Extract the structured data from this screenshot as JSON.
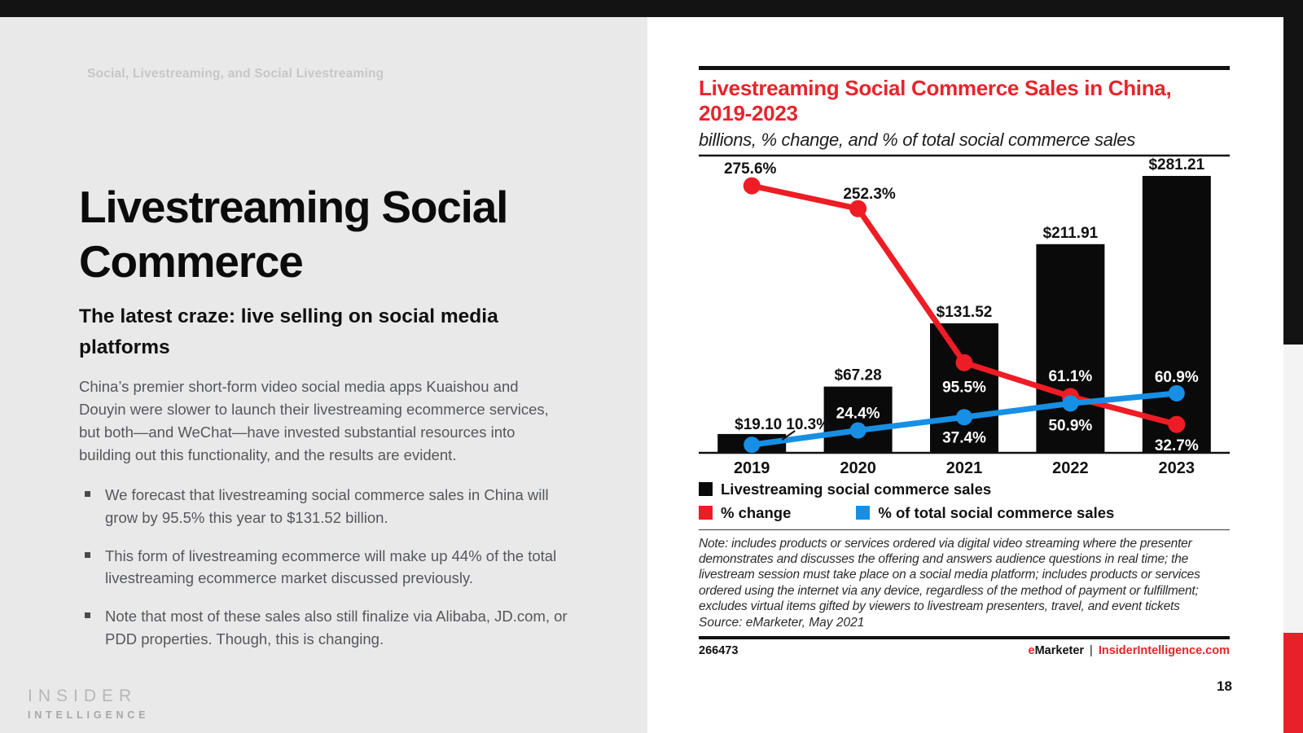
{
  "slide": {
    "eyebrow": "Social, Livestreaming, and Social Livestreaming",
    "title": "Livestreaming Social Commerce",
    "heading": "The latest craze: live selling on social media platforms",
    "paragraph": "China’s premier short-form video social media apps Kuaishou and Douyin were slower to launch their livestreaming ecommerce services, but both—and WeChat—have invested substantial resources into building out this functionality, and the results are evident.",
    "bullets": [
      "We forecast that livestreaming social commerce sales in China will grow by 95.5% this year to $131.52 billion.",
      "This form of livestreaming ecommerce will make up 44% of the total livestreaming ecommerce market discussed previously.",
      "Note that most of these sales also still finalize via Alibaba, JD.com, or PDD properties. Though, this is changing."
    ],
    "page_number": "18",
    "logo": {
      "line1": "INSIDER",
      "line2": "INTELLIGENCE"
    }
  },
  "panel": {
    "title_line1": "Livestreaming Social Commerce Sales in China,",
    "title_line2": "2019-2023",
    "subtitle": "billions, % change, and % of total social commerce sales",
    "note": "Note: includes products or services ordered via digital video streaming where the presenter demonstrates and discusses the offering and answers audience questions in real time; the livestream session must take place on a social media platform; includes products or services ordered using the internet via any device, regardless of the method of payment or fulfillment; excludes virtual items gifted by viewers to livestream presenters, travel, and event tickets",
    "source": "Source: eMarketer, May 2021",
    "chart_id": "266473",
    "brand": {
      "e": "e",
      "marketer": "Marketer",
      "separator": "|",
      "site": "InsiderIntelligence.com"
    }
  },
  "chart_data": {
    "type": "combo",
    "title": "Livestreaming Social Commerce Sales in China, 2019-2023",
    "units_note": "billions, % change, and % of total social commerce sales",
    "categories": [
      "2019",
      "2020",
      "2021",
      "2022",
      "2023"
    ],
    "series": [
      {
        "name": "Livestreaming social commerce sales",
        "type": "bar",
        "color": "#0a0a0a",
        "unit": "USD billions",
        "values": [
          19.1,
          67.28,
          131.52,
          211.91,
          281.21
        ],
        "labels": [
          "$19.10",
          "$67.28",
          "$131.52",
          "$211.91",
          "$281.21"
        ]
      },
      {
        "name": "% change",
        "type": "line",
        "color": "#ee1c25",
        "unit": "%",
        "values": [
          275.6,
          252.3,
          95.5,
          61.1,
          32.7
        ],
        "labels": [
          "275.6%",
          "252.3%",
          "95.5%",
          "61.1%",
          "32.7%"
        ]
      },
      {
        "name": "% of total social commerce sales",
        "type": "line",
        "color": "#178fe5",
        "unit": "%",
        "values": [
          10.3,
          24.4,
          37.4,
          50.9,
          60.9
        ],
        "labels": [
          "10.3%",
          "24.4%",
          "37.4%",
          "50.9%",
          "60.9%"
        ]
      }
    ],
    "legend_position": "bottom",
    "grid": false
  },
  "colors": {
    "ink": "#111111",
    "accent_red": "#e8242b",
    "chart_red": "#ee1c25",
    "chart_blue": "#178fe5",
    "bar_black": "#0a0a0a",
    "slide_bg": "#e9e9e9",
    "top_bar": "#131313",
    "side_gray": "#f3f3f3",
    "side_red": "#e8202a",
    "card_bg": "#ffffff",
    "body_text": "#55575b",
    "eyebrow_text": "#c7c7c7",
    "logo_text": "#b3b3b3"
  }
}
